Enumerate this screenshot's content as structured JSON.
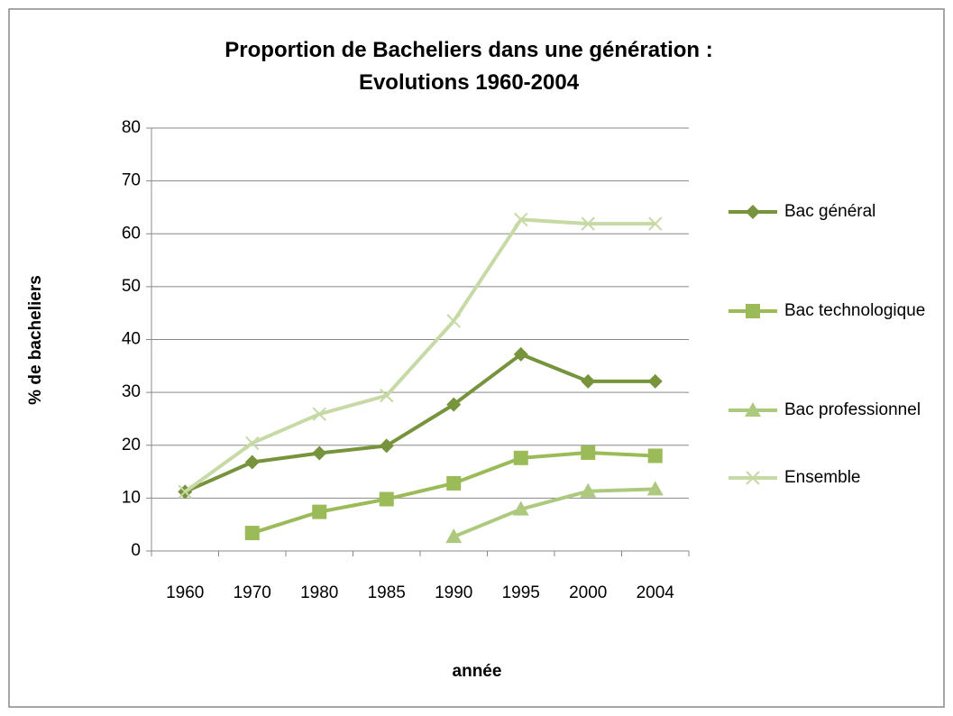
{
  "chart_data": {
    "type": "line",
    "title": "Proportion de Bacheliers dans une génération : Evolutions 1960-2004",
    "xlabel": "année",
    "ylabel": "% de bacheliers",
    "categories": [
      "1960",
      "1970",
      "1980",
      "1985",
      "1990",
      "1995",
      "2000",
      "2004"
    ],
    "series": [
      {
        "name": "Bac général",
        "color": "#77933c",
        "marker": "diamond",
        "values": [
          11.2,
          16.8,
          18.5,
          19.9,
          27.7,
          37.2,
          32.1,
          32.1
        ]
      },
      {
        "name": "Bac technologique",
        "color": "#9bbb59",
        "marker": "square",
        "values": [
          null,
          3.4,
          7.4,
          9.8,
          12.8,
          17.6,
          18.6,
          18.0
        ]
      },
      {
        "name": "Bac professionnel",
        "color": "#acc97e",
        "marker": "triangle",
        "values": [
          null,
          null,
          null,
          null,
          2.7,
          7.9,
          11.3,
          11.7
        ]
      },
      {
        "name": "Ensemble",
        "color": "#c7d9a5",
        "marker": "x",
        "values": [
          11.2,
          20.4,
          25.9,
          29.4,
          43.5,
          62.7,
          61.9,
          61.9
        ]
      }
    ],
    "ylim": [
      0,
      80
    ],
    "yticks": [
      0,
      10,
      20,
      30,
      40,
      50,
      60,
      70,
      80
    ],
    "grid": true,
    "legend": "right"
  }
}
